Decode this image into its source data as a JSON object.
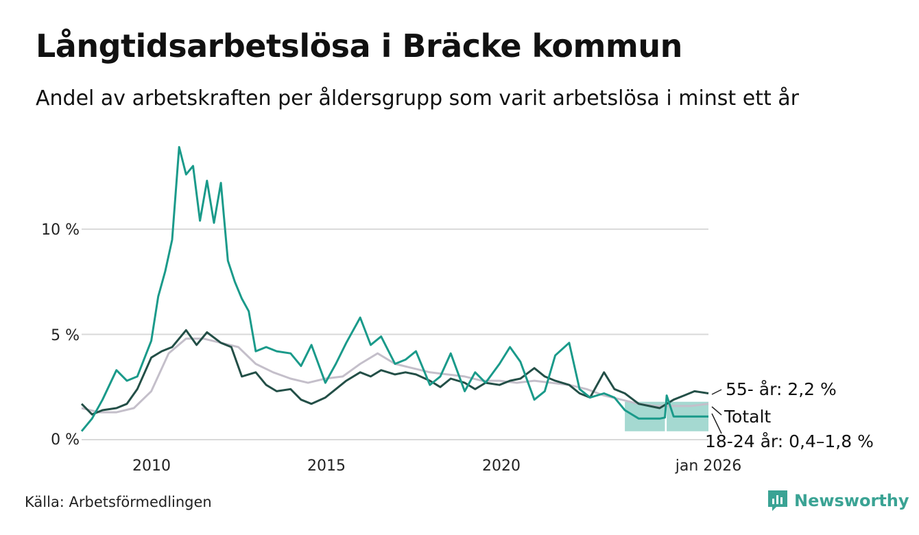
{
  "header": {
    "title": "Långtidsarbetslösa i Bräcke kommun",
    "subtitle": "Andel av arbetskraften per åldersgrupp som varit arbetslösa i minst ett år"
  },
  "footer": {
    "source": "Källa: Arbetsförmedlingen",
    "brand": "Newsworthy"
  },
  "colors": {
    "age_18_24": "#1a9a8a",
    "age_55": "#234f47",
    "total": "#c4bfca",
    "band": "#a5d9d1",
    "grid": "#d9d9d9"
  },
  "chart_data": {
    "type": "line",
    "title": "Långtidsarbetslösa i Bräcke kommun",
    "xlabel": "",
    "ylabel": "",
    "ylim": [
      0,
      14.5
    ],
    "xlim": [
      2008.0,
      2026.0
    ],
    "yticks": [
      0,
      5,
      10
    ],
    "ytick_labels": [
      "0 %",
      "5 %",
      "10 %"
    ],
    "xticks": [
      2010,
      2015,
      2020,
      2026.0
    ],
    "xtick_labels": [
      "2010",
      "2015",
      "2020",
      "jan 2026"
    ],
    "grid": true,
    "series": [
      {
        "name": "Totalt",
        "label": "Totalt",
        "x": [
          2008.0,
          2008.5,
          2009.0,
          2009.5,
          2010.0,
          2010.5,
          2011.0,
          2011.5,
          2012.0,
          2012.5,
          2013.0,
          2013.5,
          2014.0,
          2014.5,
          2015.0,
          2015.5,
          2016.0,
          2016.5,
          2017.0,
          2017.5,
          2018.0,
          2018.5,
          2019.0,
          2019.5,
          2020.0,
          2020.5,
          2021.0,
          2021.5,
          2022.0,
          2022.5,
          2023.0,
          2023.5,
          2024.0,
          2024.5,
          2025.0,
          2025.5,
          2026.0
        ],
        "values": [
          1.5,
          1.3,
          1.3,
          1.5,
          2.3,
          4.1,
          4.8,
          4.8,
          4.6,
          4.4,
          3.6,
          3.2,
          2.9,
          2.7,
          2.9,
          3.0,
          3.6,
          4.1,
          3.6,
          3.4,
          3.2,
          3.1,
          3.0,
          2.8,
          2.8,
          2.7,
          2.8,
          2.7,
          2.6,
          2.4,
          2.1,
          1.9,
          1.7,
          1.6,
          1.6,
          1.6,
          1.7
        ]
      },
      {
        "name": "55- år",
        "label": "55- år: 2,2 %",
        "x": [
          2008.0,
          2008.3,
          2008.6,
          2009.0,
          2009.3,
          2009.6,
          2010.0,
          2010.3,
          2010.6,
          2011.0,
          2011.3,
          2011.6,
          2012.0,
          2012.3,
          2012.6,
          2013.0,
          2013.3,
          2013.6,
          2014.0,
          2014.3,
          2014.6,
          2015.0,
          2015.3,
          2015.6,
          2016.0,
          2016.3,
          2016.6,
          2017.0,
          2017.3,
          2017.6,
          2018.0,
          2018.3,
          2018.6,
          2019.0,
          2019.3,
          2019.6,
          2020.0,
          2020.3,
          2020.6,
          2021.0,
          2021.3,
          2021.6,
          2022.0,
          2022.3,
          2022.6,
          2023.0,
          2023.3,
          2023.6,
          2024.0,
          2024.3,
          2024.6,
          2025.0,
          2025.3,
          2025.6,
          2026.0
        ],
        "values": [
          1.7,
          1.2,
          1.4,
          1.5,
          1.7,
          2.4,
          3.9,
          4.2,
          4.4,
          5.2,
          4.5,
          5.1,
          4.6,
          4.4,
          3.0,
          3.2,
          2.6,
          2.3,
          2.4,
          1.9,
          1.7,
          2.0,
          2.4,
          2.8,
          3.2,
          3.0,
          3.3,
          3.1,
          3.2,
          3.1,
          2.8,
          2.5,
          2.9,
          2.7,
          2.4,
          2.7,
          2.6,
          2.8,
          2.9,
          3.4,
          3.0,
          2.8,
          2.6,
          2.2,
          2.0,
          3.2,
          2.4,
          2.2,
          1.7,
          1.6,
          1.5,
          1.9,
          2.1,
          2.3,
          2.2
        ]
      },
      {
        "name": "18-24 år",
        "label": "18-24 år: 0,4–1,8 %",
        "x": [
          2008.0,
          2008.3,
          2008.6,
          2009.0,
          2009.3,
          2009.6,
          2010.0,
          2010.2,
          2010.4,
          2010.6,
          2010.8,
          2011.0,
          2011.2,
          2011.4,
          2011.6,
          2011.8,
          2012.0,
          2012.2,
          2012.4,
          2012.6,
          2012.8,
          2013.0,
          2013.3,
          2013.6,
          2014.0,
          2014.3,
          2014.6,
          2015.0,
          2015.3,
          2015.6,
          2016.0,
          2016.3,
          2016.6,
          2017.0,
          2017.3,
          2017.6,
          2018.0,
          2018.3,
          2018.6,
          2019.0,
          2019.3,
          2019.6,
          2020.0,
          2020.3,
          2020.6,
          2021.0,
          2021.3,
          2021.6,
          2022.0,
          2022.3,
          2022.6,
          2023.0,
          2023.3,
          2023.6,
          2024.0,
          2024.3,
          2024.6,
          2024.75,
          2024.8,
          2025.0,
          2025.3,
          2025.6,
          2026.0
        ],
        "values": [
          0.4,
          1.0,
          1.9,
          3.3,
          2.8,
          3.0,
          4.7,
          6.8,
          8.0,
          9.5,
          13.9,
          12.6,
          13.0,
          10.4,
          12.3,
          10.3,
          12.2,
          8.5,
          7.5,
          6.7,
          6.1,
          4.2,
          4.4,
          4.2,
          4.1,
          3.5,
          4.5,
          2.7,
          3.6,
          4.6,
          5.8,
          4.5,
          4.9,
          3.6,
          3.8,
          4.2,
          2.6,
          3.0,
          4.1,
          2.3,
          3.2,
          2.7,
          3.6,
          4.4,
          3.7,
          1.9,
          2.3,
          4.0,
          4.6,
          2.4,
          2.0,
          2.2,
          2.0,
          1.4,
          1.0,
          1.0,
          1.0,
          1.05,
          2.1,
          1.1,
          1.1,
          1.1,
          1.1
        ]
      },
      {
        "name": "18-24 år intervall",
        "x": [
          2023.6,
          2024.0,
          2024.4,
          2024.75,
          2024.8,
          2025.0,
          2025.5,
          2026.0
        ],
        "lower": [
          0.4,
          0.4,
          0.4,
          0.4,
          0.4,
          0.4,
          0.4,
          0.4
        ],
        "upper": [
          1.8,
          1.8,
          1.8,
          1.8,
          1.8,
          1.8,
          1.8,
          1.8
        ]
      }
    ]
  }
}
